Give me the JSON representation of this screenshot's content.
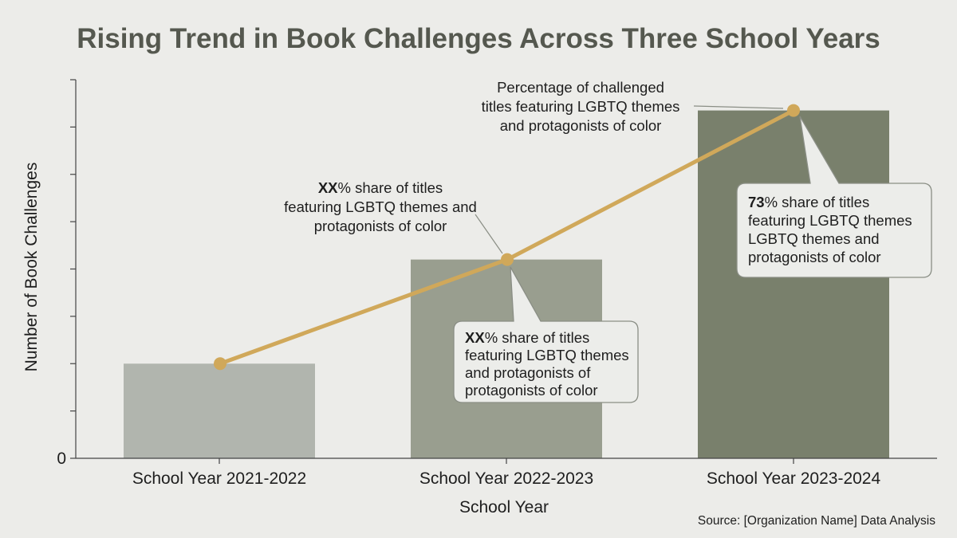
{
  "colors": {
    "background": "#ececE9",
    "bar_light": "#b1b5ae",
    "bar_mid": "#999e8f",
    "bar_dark": "#79806c",
    "trend_line": "#d0a85a",
    "axis": "#444444",
    "title": "#55584f",
    "callout_fill": "#ecedea",
    "callout_stroke": "#8a8e85"
  },
  "chart_data": {
    "type": "bar",
    "title": "Rising Trend in Book Challenges Across Three School Years",
    "xlabel": "School Year",
    "ylabel": "Number of Book Challenges",
    "categories": [
      "School Year 2021-2022",
      "School Year 2022-2023",
      "School Year 2023-2024"
    ],
    "values": [
      2,
      4.2,
      7.35
    ],
    "line_values": [
      2,
      4.2,
      7.35
    ],
    "ylim": [
      0,
      8
    ],
    "y_ticks": [
      "0",
      "",
      "",
      "",
      "",
      "",
      "",
      "",
      ""
    ],
    "grid": false,
    "source": "Source: [Organization Name] Data Analysis",
    "annotations": [
      {
        "lines": [
          {
            "bold": "",
            "text": "Percentage of challenged"
          },
          {
            "bold": "",
            "text": "titles featuring LGBTQ themes"
          },
          {
            "bold": "",
            "text": "and protagonists of color"
          }
        ]
      },
      {
        "lines": [
          {
            "bold": "XX",
            "text": "% share of titles"
          },
          {
            "bold": "",
            "text": "featuring LGBTQ themes and"
          },
          {
            "bold": "",
            "text": "protagonists of color"
          }
        ]
      },
      {
        "lines": [
          {
            "bold": "XX",
            "text": "% share of titles"
          },
          {
            "bold": "",
            "text": "featuring LGBTQ themes"
          },
          {
            "bold": "",
            "text": "and protagonists of"
          },
          {
            "bold": "",
            "text": "protagonists of color"
          }
        ]
      },
      {
        "lines": [
          {
            "bold": "73",
            "text": "% share of titles"
          },
          {
            "bold": "",
            "text": "featuring LGBTQ themes"
          },
          {
            "bold": "",
            "text": "LGBTQ themes and"
          },
          {
            "bold": "",
            "text": "protagonists of color"
          }
        ]
      }
    ]
  }
}
